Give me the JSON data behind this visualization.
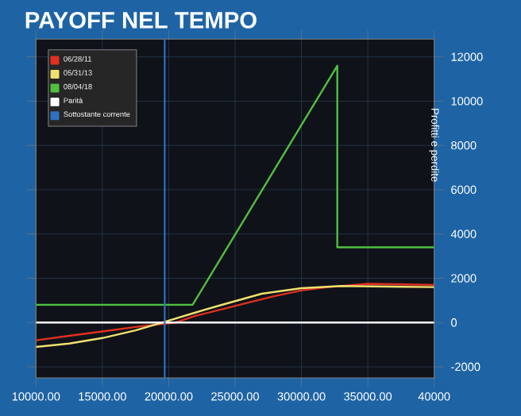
{
  "chart_data": {
    "type": "line",
    "title": "PAYOFF NEL TEMPO",
    "ylabel": "Profitti e perdite",
    "xlim": [
      10000,
      40000
    ],
    "ylim": [
      -2500,
      12800
    ],
    "xticks": [
      {
        "value": 10000,
        "label": "10000.00"
      },
      {
        "value": 15000,
        "label": "15000.00"
      },
      {
        "value": 20000,
        "label": "20000.00"
      },
      {
        "value": 25000,
        "label": "25000.00"
      },
      {
        "value": 30000,
        "label": "30000.00"
      },
      {
        "value": 35000,
        "label": "35000.00"
      },
      {
        "value": 40000,
        "label": "40000"
      }
    ],
    "yticks": [
      -2000,
      0,
      2000,
      4000,
      6000,
      8000,
      10000,
      12000
    ],
    "grid": true,
    "legend": "top left",
    "marker": "none",
    "line_style": "solid",
    "series": [
      {
        "name": "06/28/11",
        "color": "#e03020",
        "x": [
          10000,
          12500,
          15000,
          17500,
          20500,
          22000,
          24000,
          26000,
          28000,
          30000,
          32000,
          35000,
          40000
        ],
        "values": [
          -800,
          -600,
          -400,
          -200,
          0,
          300,
          600,
          900,
          1200,
          1450,
          1600,
          1750,
          1700
        ]
      },
      {
        "name": "05/31/13",
        "color": "#f0e070",
        "x": [
          10000,
          12500,
          15000,
          17500,
          19500,
          22000,
          24000,
          27000,
          30000,
          33000,
          40000
        ],
        "values": [
          -1100,
          -950,
          -700,
          -350,
          0,
          450,
          800,
          1300,
          1550,
          1650,
          1600
        ]
      },
      {
        "name": "08/04/18",
        "color": "#50c040",
        "x": [
          10000,
          21800,
          32700,
          32700,
          40000
        ],
        "values": [
          800,
          800,
          11600,
          3400,
          3400
        ]
      },
      {
        "name": "Parità",
        "color": "#ffffff",
        "x": [
          10000,
          40000
        ],
        "values": [
          0,
          0
        ]
      },
      {
        "name": "Sottostante corrente",
        "color": "#3070c0",
        "x": [
          19700,
          19700
        ],
        "values": [
          -2500,
          12800
        ]
      }
    ]
  }
}
